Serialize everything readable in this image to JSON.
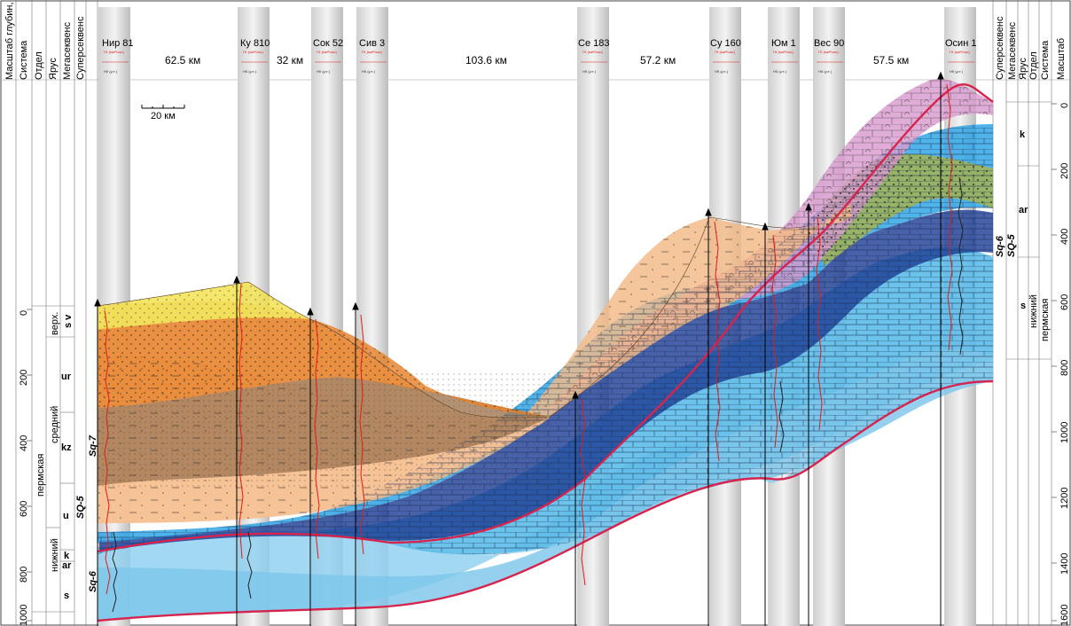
{
  "left_header": [
    "Масштаб глубин, м",
    "Система",
    "Отдел",
    "Ярус",
    "Мегасеквенс",
    "Суперсеквенс"
  ],
  "right_header": [
    "Суперсеквенс",
    "Мегасеквенс",
    "Ярус",
    "Отдел",
    "Система",
    "Масштаб"
  ],
  "wells": [
    "Нир 81",
    "Ку 810",
    "Сок 52",
    "Сив 3",
    "Се 183",
    "Су 160",
    "Юм 1",
    "Вес 90",
    "Осин 1"
  ],
  "distances": [
    "62.5 км",
    "32 км",
    "103.6 км",
    "57.2 км",
    "57.5 км"
  ],
  "scale_bar": "20 км",
  "log_labels": {
    "gk": "ГК (мкР/час)",
    "nk": "НК (у.е.)",
    "zero": "0",
    "max": "8"
  },
  "left_strat": {
    "system": "пермская",
    "series": [
      "верх.",
      "средний",
      "нижний"
    ],
    "stages": [
      "s v",
      "ur",
      "kz",
      "u",
      "k",
      "ar",
      "s"
    ],
    "megasequence": "SQ-5",
    "supersequences": [
      "Sq-7",
      "Sq-6"
    ]
  },
  "right_strat": {
    "system": "пермская",
    "series": "нижний",
    "stages": [
      "k",
      "ar",
      "s"
    ],
    "megasequence": "SQ-5",
    "supersequence": "Sq-6"
  },
  "left_depth_ticks": [
    "0",
    "200",
    "400",
    "600",
    "800",
    "1000"
  ],
  "right_depth_ticks": [
    "0",
    "200",
    "400",
    "600",
    "800",
    "1000",
    "1200",
    "1400",
    "1600"
  ]
}
